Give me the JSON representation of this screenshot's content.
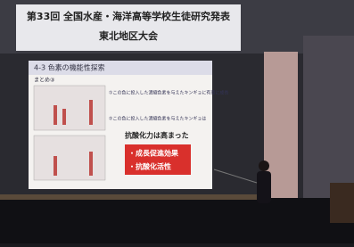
{
  "banner": {
    "line1": "第33回 全国水産・海洋高等学校生徒研究発表",
    "line2": "東北地区大会"
  },
  "slide": {
    "title": "4-3 色素の機能性探索",
    "summary_label": "まとめ③",
    "points": [
      "①この色に投入した濃縮色素を与えたキンギョに有意に成長",
      "②この色に投入した濃縮色素を与えたキンギョは"
    ],
    "conclusion": "抗酸化力は高まった",
    "effects": [
      "・成長促進効果",
      "・抗酸化活性"
    ]
  }
}
